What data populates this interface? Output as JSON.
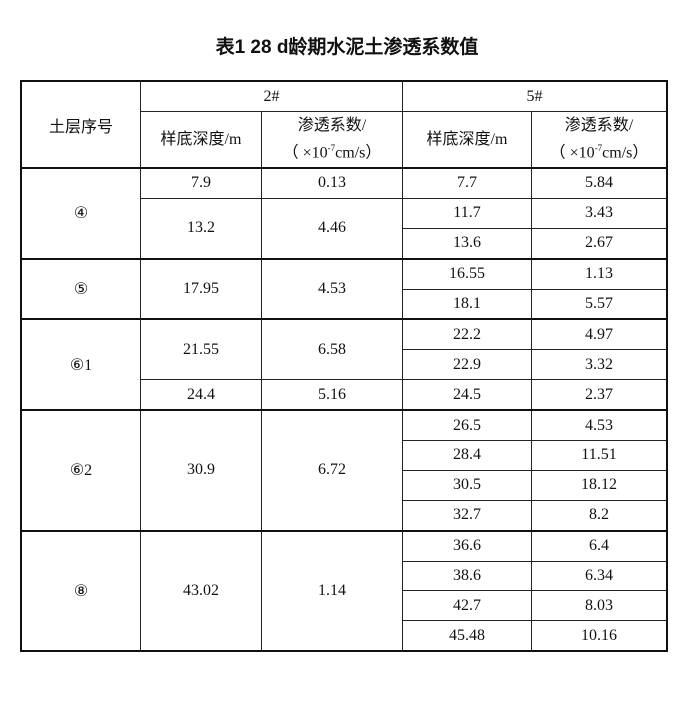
{
  "title": "表1  28 d龄期水泥土渗透系数值",
  "header": {
    "layer": "土层序号",
    "group_a": "2#",
    "group_b": "5#",
    "depth": "样底深度/m",
    "coef_line1": "渗透系数/",
    "coef_line2_pre": "（ ×10",
    "coef_exp": "-7",
    "coef_line2_post": "cm/s）"
  },
  "groups": [
    {
      "layer": "④",
      "a": [
        [
          "7.9",
          "0.13",
          1
        ],
        [
          "13.2",
          "4.46",
          2
        ]
      ],
      "b": [
        [
          "7.7",
          "5.84"
        ],
        [
          "11.7",
          "3.43"
        ],
        [
          "13.6",
          "2.67"
        ]
      ]
    },
    {
      "layer": "⑤",
      "a": [
        [
          "17.95",
          "4.53",
          2
        ]
      ],
      "b": [
        [
          "16.55",
          "1.13"
        ],
        [
          "18.1",
          "5.57"
        ]
      ]
    },
    {
      "layer": "⑥1",
      "a": [
        [
          "21.55",
          "6.58",
          2
        ],
        [
          "24.4",
          "5.16",
          1
        ]
      ],
      "b": [
        [
          "22.2",
          "4.97"
        ],
        [
          "22.9",
          "3.32"
        ],
        [
          "24.5",
          "2.37"
        ]
      ]
    },
    {
      "layer": "⑥2",
      "a": [
        [
          "30.9",
          "6.72",
          4
        ]
      ],
      "b": [
        [
          "26.5",
          "4.53"
        ],
        [
          "28.4",
          "11.51"
        ],
        [
          "30.5",
          "18.12"
        ],
        [
          "32.7",
          "8.2"
        ]
      ]
    },
    {
      "layer": "⑧",
      "a": [
        [
          "43.02",
          "1.14",
          4
        ]
      ],
      "b": [
        [
          "36.6",
          "6.4"
        ],
        [
          "38.6",
          "6.34"
        ],
        [
          "42.7",
          "8.03"
        ],
        [
          "45.48",
          "10.16"
        ]
      ]
    }
  ]
}
